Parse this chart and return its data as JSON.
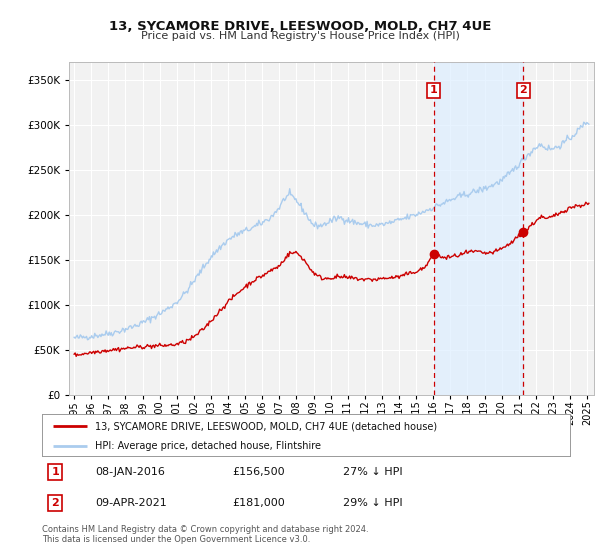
{
  "title": "13, SYCAMORE DRIVE, LEESWOOD, MOLD, CH7 4UE",
  "subtitle": "Price paid vs. HM Land Registry's House Price Index (HPI)",
  "legend_label_red": "13, SYCAMORE DRIVE, LEESWOOD, MOLD, CH7 4UE (detached house)",
  "legend_label_blue": "HPI: Average price, detached house, Flintshire",
  "annotation1_date": "08-JAN-2016",
  "annotation1_price": "£156,500",
  "annotation1_hpi": "27% ↓ HPI",
  "annotation2_date": "09-APR-2021",
  "annotation2_price": "£181,000",
  "annotation2_hpi": "29% ↓ HPI",
  "footer1": "Contains HM Land Registry data © Crown copyright and database right 2024.",
  "footer2": "This data is licensed under the Open Government Licence v3.0.",
  "red_color": "#cc0000",
  "blue_color": "#aaccee",
  "marker_color": "#cc0000",
  "vline_color": "#cc0000",
  "shade_color": "#ddeeff",
  "bg_color": "#f2f2f2",
  "grid_color": "#ffffff",
  "ylim": [
    0,
    370000
  ],
  "sale1_year": 2016.03,
  "sale2_year": 2021.27,
  "sale1_price": 156500,
  "sale2_price": 181000
}
